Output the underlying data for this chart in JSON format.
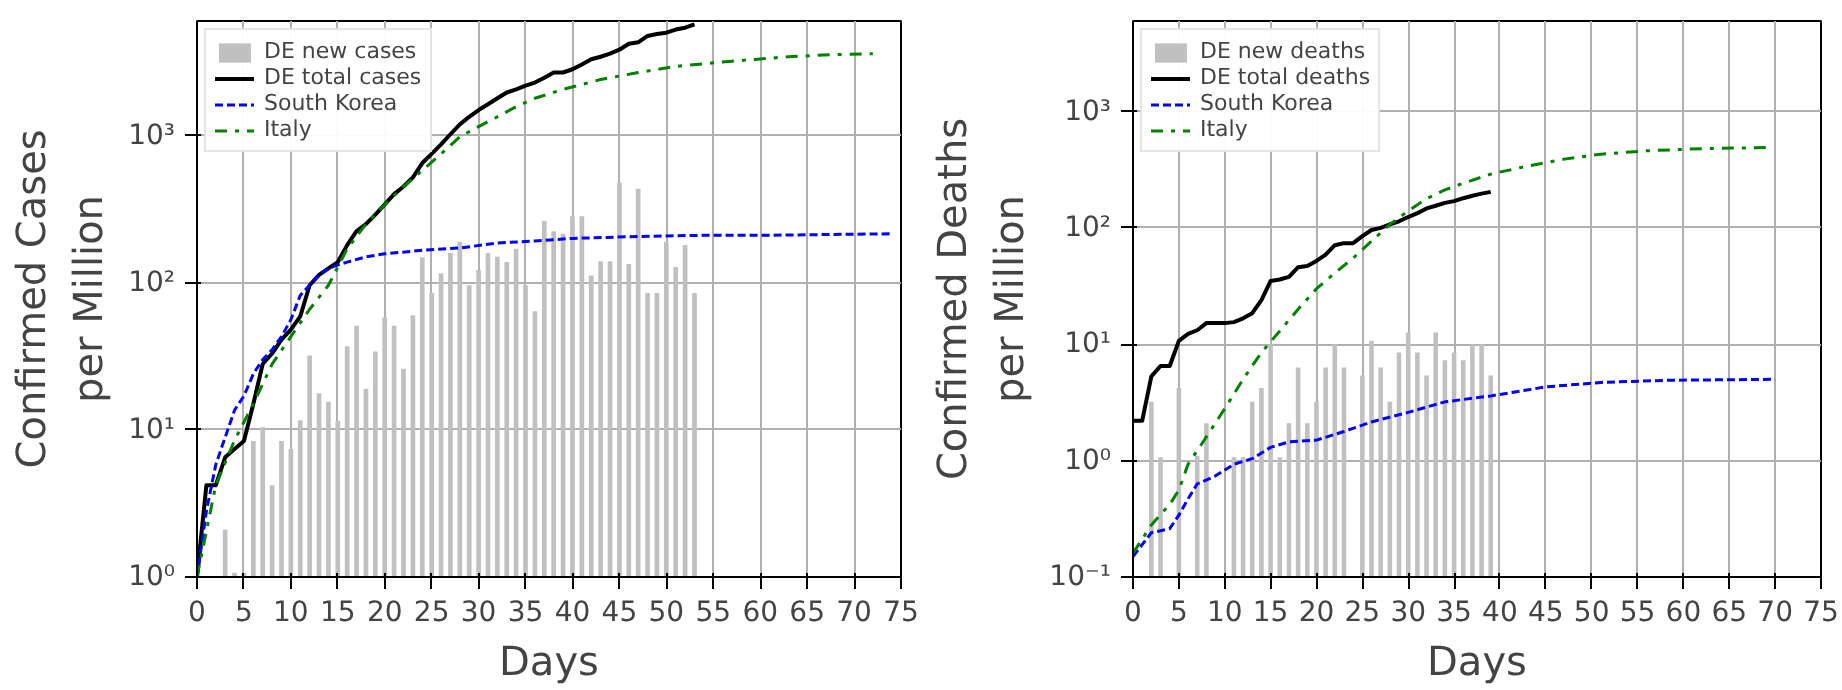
{
  "chart_data": [
    {
      "type": "line",
      "xlabel": "Days",
      "ylabel": "Confirmed Cases\nper Million",
      "log": "y",
      "grid": true,
      "legend": "top left",
      "xlim": [
        0,
        75
      ],
      "xticks": [
        0,
        5,
        10,
        15,
        20,
        25,
        30,
        35,
        40,
        45,
        50,
        55,
        60,
        65,
        70,
        75
      ],
      "ylim": [
        1,
        6000
      ],
      "yticks": [
        {
          "value": 1,
          "label": "10⁰"
        },
        {
          "value": 10,
          "label": "10¹"
        },
        {
          "value": 100,
          "label": "10²"
        },
        {
          "value": 1000,
          "label": "10³"
        }
      ],
      "series": [
        {
          "name": "DE new cases",
          "type": "bar",
          "color": "#c0c0c0",
          "x": [
            3,
            4,
            5,
            6,
            7,
            8,
            9,
            10,
            11,
            12,
            13,
            14,
            15,
            16,
            17,
            18,
            19,
            20,
            21,
            22,
            23,
            24,
            25,
            26,
            27,
            28,
            29,
            30,
            31,
            32,
            33,
            34,
            35,
            36,
            37,
            38,
            39,
            40,
            41,
            42,
            43,
            44,
            45,
            46,
            47,
            48,
            49,
            50,
            51,
            52,
            53
          ],
          "values": [
            2.1,
            1.07,
            1.07,
            8.4,
            10.4,
            4.2,
            8.4,
            7.4,
            11.6,
            32,
            17.7,
            15.5,
            11.5,
            37,
            51,
            19,
            34,
            58,
            51,
            26,
            60,
            149,
            85,
            116,
            159,
            190,
            96,
            122,
            159,
            150,
            138,
            170,
            96,
            64,
            262,
            224,
            215,
            283,
            283,
            112,
            140,
            140,
            480,
            134,
            435,
            85,
            85,
            190,
            128,
            180,
            85
          ]
        },
        {
          "name": "DE total cases",
          "color": "#000000",
          "line_style": "solid",
          "x": [
            0,
            1,
            2,
            3,
            4,
            5,
            6,
            7,
            8,
            9,
            10,
            11,
            12,
            13,
            14,
            15,
            16,
            17,
            18,
            19,
            20,
            21,
            22,
            23,
            24,
            25,
            26,
            27,
            28,
            29,
            30,
            31,
            32,
            33,
            34,
            35,
            36,
            37,
            38,
            39,
            40,
            41,
            42,
            43,
            44,
            45,
            46,
            47,
            48,
            49,
            50,
            51,
            52,
            53
          ],
          "values": [
            1,
            4.2,
            4.2,
            6.5,
            7.4,
            8.4,
            15,
            28,
            33,
            41,
            48,
            59,
            96,
            113,
            125,
            138,
            180,
            224,
            250,
            290,
            340,
            400,
            450,
            520,
            650,
            750,
            870,
            1020,
            1190,
            1340,
            1490,
            1630,
            1790,
            1960,
            2060,
            2180,
            2290,
            2470,
            2680,
            2680,
            2820,
            3040,
            3300,
            3430,
            3600,
            3830,
            4200,
            4300,
            4750,
            4900,
            5000,
            5250,
            5400,
            5700
          ]
        },
        {
          "name": "South Korea",
          "color": "#0000ff",
          "line_style": "dashed",
          "x": [
            0,
            1,
            2,
            3,
            4,
            5,
            6,
            7,
            8,
            9,
            10,
            11,
            12,
            13,
            14,
            15,
            16,
            18,
            20,
            24,
            28,
            32,
            36,
            40,
            47,
            54,
            61,
            74
          ],
          "values": [
            1,
            2.8,
            5.8,
            8.9,
            13.6,
            17,
            24,
            30,
            35,
            43,
            56,
            82,
            96,
            113,
            125,
            132,
            138,
            150,
            157,
            166,
            172,
            186,
            192,
            200,
            206,
            210,
            210,
            215
          ]
        },
        {
          "name": "Italy",
          "color": "#008000",
          "line_style": "dashdot",
          "x": [
            0,
            2,
            4,
            6,
            8,
            10,
            12,
            14,
            16,
            18,
            20,
            22,
            24,
            26,
            28,
            30,
            32,
            34,
            36,
            39,
            43,
            47,
            51,
            57,
            63,
            68,
            72
          ],
          "values": [
            1,
            4.2,
            8.5,
            15,
            28,
            43,
            66,
            96,
            170,
            250,
            340,
            450,
            580,
            750,
            980,
            1150,
            1340,
            1570,
            1790,
            2060,
            2400,
            2680,
            2950,
            3200,
            3430,
            3550,
            3600
          ]
        }
      ]
    },
    {
      "type": "line",
      "xlabel": "Days",
      "ylabel": "Confirmed Deaths\nper Million",
      "log": "y",
      "grid": true,
      "legend": "top left",
      "xlim": [
        0,
        75
      ],
      "xticks": [
        0,
        5,
        10,
        15,
        20,
        25,
        30,
        35,
        40,
        45,
        50,
        55,
        60,
        65,
        70,
        75
      ],
      "ylim": [
        0.1,
        6000
      ],
      "yticks": [
        {
          "value": 0.1,
          "label": "10⁻¹"
        },
        {
          "value": 1,
          "label": "10⁰"
        },
        {
          "value": 10,
          "label": "10¹"
        },
        {
          "value": 100,
          "label": "10²"
        },
        {
          "value": 1000,
          "label": "10³"
        }
      ],
      "series": [
        {
          "name": "DE new deaths",
          "type": "bar",
          "color": "#c0c0c0",
          "x": [
            2,
            3,
            5,
            7,
            8,
            11,
            12,
            13,
            14,
            15,
            16,
            17,
            18,
            19,
            20,
            21,
            22,
            23,
            25,
            26,
            27,
            28,
            29,
            30,
            31,
            32,
            33,
            34,
            35,
            36,
            37,
            38,
            39
          ],
          "values": [
            3.2,
            1.07,
            4.2,
            1.1,
            2.1,
            1.07,
            1.07,
            3.2,
            4.2,
            10,
            1.07,
            2.1,
            6.3,
            2.1,
            3.2,
            6.3,
            10,
            6.3,
            5.4,
            10.7,
            6.3,
            3.2,
            8.5,
            12.6,
            8.5,
            5.4,
            12.6,
            7.3,
            8.5,
            7.3,
            10,
            10,
            5.4
          ]
        },
        {
          "name": "DE total deaths",
          "color": "#000000",
          "line_style": "solid",
          "x": [
            0,
            1,
            2,
            3,
            4,
            5,
            6,
            7,
            8,
            9,
            10,
            11,
            12,
            13,
            14,
            15,
            16,
            17,
            18,
            19,
            20,
            21,
            22,
            23,
            24,
            25,
            26,
            27,
            28,
            29,
            30,
            31,
            32,
            33,
            34,
            35,
            36,
            37,
            38,
            39
          ],
          "values": [
            2.2,
            2.2,
            5.3,
            6.5,
            6.5,
            10.7,
            12.3,
            13.2,
            15.2,
            15.2,
            15.2,
            15.5,
            16.7,
            18.5,
            24,
            35,
            36,
            38,
            46,
            47,
            52,
            59,
            71,
            74,
            74,
            85,
            96,
            100,
            107,
            114,
            124,
            134,
            147,
            155,
            164,
            170,
            180,
            189,
            197,
            204
          ]
        },
        {
          "name": "South Korea",
          "color": "#0000ff",
          "line_style": "dashed",
          "x": [
            0,
            2,
            4,
            5,
            6,
            7,
            9,
            11,
            13,
            15,
            17,
            20,
            23,
            26,
            30,
            34,
            39,
            45,
            51,
            58,
            70
          ],
          "values": [
            0.15,
            0.24,
            0.26,
            0.34,
            0.47,
            0.63,
            0.74,
            0.93,
            1.04,
            1.3,
            1.45,
            1.5,
            1.78,
            2.15,
            2.6,
            3.2,
            3.6,
            4.3,
            4.7,
            4.9,
            5.0
          ]
        },
        {
          "name": "Italy",
          "color": "#008000",
          "line_style": "dashdot",
          "x": [
            0,
            2,
            4,
            5,
            6,
            8,
            10,
            12,
            14,
            16,
            18,
            20,
            22,
            24,
            26,
            28,
            30,
            32,
            34,
            36,
            39,
            43,
            47,
            51,
            56,
            62,
            69
          ],
          "values": [
            0.16,
            0.28,
            0.42,
            0.56,
            0.93,
            1.6,
            2.8,
            5,
            8.5,
            13,
            20,
            30,
            41,
            55,
            77,
            107,
            140,
            178,
            212,
            242,
            290,
            340,
            390,
            430,
            460,
            480,
            490
          ]
        }
      ]
    }
  ]
}
